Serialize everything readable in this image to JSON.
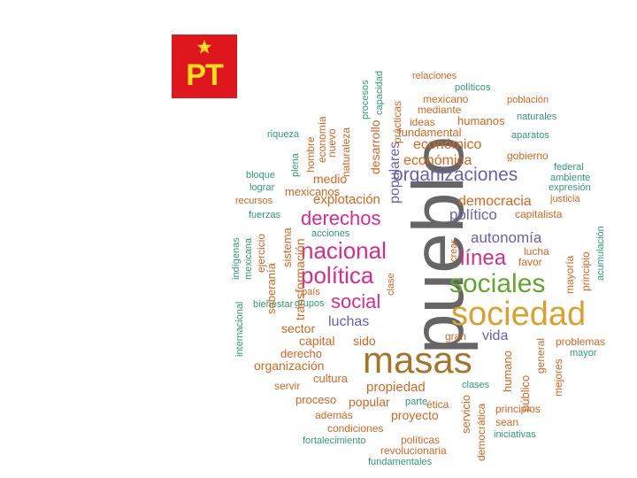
{
  "logo": {
    "text": "PT",
    "icon": "star-icon",
    "bg": "#e0161e",
    "fg": "#ffe01b"
  },
  "palette": {
    "green": "#2e9d78",
    "orange": "#d4661f",
    "purple": "#6b5fb0",
    "pink": "#d82c8a",
    "lime": "#62a62a",
    "gold": "#dca12c",
    "brown": "#a5762a",
    "gray": "#666666"
  },
  "words": [
    {
      "text": "pueblo",
      "color": "gray",
      "vertical": true
    },
    {
      "text": "masas",
      "color": "brown"
    },
    {
      "text": "sociedad",
      "color": "gold"
    },
    {
      "text": "sociales",
      "color": "lime"
    },
    {
      "text": "nacional",
      "color": "pink"
    },
    {
      "text": "política",
      "color": "pink"
    },
    {
      "text": "derechos",
      "color": "pink"
    },
    {
      "text": "social",
      "color": "pink"
    },
    {
      "text": "organizaciones",
      "color": "purple"
    },
    {
      "text": "línea",
      "color": "pink"
    },
    {
      "text": "autonomía",
      "color": "purple"
    },
    {
      "text": "político",
      "color": "purple"
    },
    {
      "text": "democracia",
      "color": "orange"
    },
    {
      "text": "luchas",
      "color": "purple"
    },
    {
      "text": "vida",
      "color": "purple"
    },
    {
      "text": "populares",
      "color": "purple",
      "vertical": true
    },
    {
      "text": "económico",
      "color": "orange"
    },
    {
      "text": "económica",
      "color": "orange"
    },
    {
      "text": "desarrollo",
      "color": "orange",
      "vertical": true
    },
    {
      "text": "explotación",
      "color": "orange"
    },
    {
      "text": "propiedad",
      "color": "orange"
    },
    {
      "text": "proyecto",
      "color": "orange"
    },
    {
      "text": "popular",
      "color": "orange"
    },
    {
      "text": "capital",
      "color": "orange"
    },
    {
      "text": "sido",
      "color": "orange"
    },
    {
      "text": "sector",
      "color": "orange"
    },
    {
      "text": "organización",
      "color": "orange"
    },
    {
      "text": "derecho",
      "color": "orange"
    },
    {
      "text": "cultura",
      "color": "orange"
    },
    {
      "text": "proceso",
      "color": "orange"
    },
    {
      "text": "servir",
      "color": "orange"
    },
    {
      "text": "medio",
      "color": "orange"
    },
    {
      "text": "mexicanos",
      "color": "orange"
    },
    {
      "text": "fundamental",
      "color": "orange"
    },
    {
      "text": "humanos",
      "color": "orange"
    },
    {
      "text": "ideas",
      "color": "orange"
    },
    {
      "text": "mediante",
      "color": "orange"
    },
    {
      "text": "mexicano",
      "color": "orange"
    },
    {
      "text": "relaciones",
      "color": "orange"
    },
    {
      "text": "políticos",
      "color": "green"
    },
    {
      "text": "población",
      "color": "orange"
    },
    {
      "text": "naturales",
      "color": "green"
    },
    {
      "text": "aparatos",
      "color": "green"
    },
    {
      "text": "gobierno",
      "color": "orange"
    },
    {
      "text": "federal",
      "color": "green"
    },
    {
      "text": "ambiente",
      "color": "green"
    },
    {
      "text": "expresión",
      "color": "green"
    },
    {
      "text": "justicia",
      "color": "orange"
    },
    {
      "text": "capitalista",
      "color": "orange"
    },
    {
      "text": "lucha",
      "color": "orange"
    },
    {
      "text": "favor",
      "color": "orange"
    },
    {
      "text": "gran",
      "color": "orange"
    },
    {
      "text": "problemas",
      "color": "orange"
    },
    {
      "text": "mayor",
      "color": "green"
    },
    {
      "text": "principios",
      "color": "orange"
    },
    {
      "text": "sean",
      "color": "orange"
    },
    {
      "text": "iniciativas",
      "color": "green"
    },
    {
      "text": "clases",
      "color": "green"
    },
    {
      "text": "parte",
      "color": "green"
    },
    {
      "text": "ética",
      "color": "orange"
    },
    {
      "text": "además",
      "color": "orange"
    },
    {
      "text": "condiciones",
      "color": "orange"
    },
    {
      "text": "políticas",
      "color": "orange"
    },
    {
      "text": "fortalecimiento",
      "color": "green"
    },
    {
      "text": "revolucionaria",
      "color": "orange"
    },
    {
      "text": "fundamentales",
      "color": "green"
    },
    {
      "text": "riqueza",
      "color": "green"
    },
    {
      "text": "bloque",
      "color": "green"
    },
    {
      "text": "lograr",
      "color": "green"
    },
    {
      "text": "recursos",
      "color": "orange"
    },
    {
      "text": "fuerzas",
      "color": "green"
    },
    {
      "text": "acciones",
      "color": "green"
    },
    {
      "text": "país",
      "color": "orange"
    },
    {
      "text": "grupos",
      "color": "green"
    },
    {
      "text": "bienestar",
      "color": "green"
    },
    {
      "text": "transformación",
      "color": "orange",
      "vertical": true
    },
    {
      "text": "sistema",
      "color": "orange",
      "vertical": true
    },
    {
      "text": "soberanía",
      "color": "orange",
      "vertical": true
    },
    {
      "text": "ejercicio",
      "color": "orange",
      "vertical": true
    },
    {
      "text": "mexicana",
      "color": "green",
      "vertical": true
    },
    {
      "text": "indígenas",
      "color": "green",
      "vertical": true
    },
    {
      "text": "internacional",
      "color": "green",
      "vertical": true
    },
    {
      "text": "plena",
      "color": "green",
      "vertical": true
    },
    {
      "text": "hombre",
      "color": "orange",
      "vertical": true
    },
    {
      "text": "economía",
      "color": "orange",
      "vertical": true
    },
    {
      "text": "nuevo",
      "color": "orange",
      "vertical": true
    },
    {
      "text": "naturaleza",
      "color": "orange",
      "vertical": true
    },
    {
      "text": "procesos",
      "color": "green",
      "vertical": true
    },
    {
      "text": "capacidad",
      "color": "green",
      "vertical": true
    },
    {
      "text": "prácticas",
      "color": "orange",
      "vertical": true
    },
    {
      "text": "crear",
      "color": "orange",
      "vertical": true
    },
    {
      "text": "clase",
      "color": "orange",
      "vertical": true
    },
    {
      "text": "humano",
      "color": "orange",
      "vertical": true
    },
    {
      "text": "servicio",
      "color": "orange",
      "vertical": true
    },
    {
      "text": "democrática",
      "color": "orange",
      "vertical": true
    },
    {
      "text": "público",
      "color": "orange",
      "vertical": true
    },
    {
      "text": "general",
      "color": "orange",
      "vertical": true
    },
    {
      "text": "mejores",
      "color": "orange",
      "vertical": true
    },
    {
      "text": "mayoría",
      "color": "orange",
      "vertical": true
    },
    {
      "text": "principio",
      "color": "orange",
      "vertical": true
    },
    {
      "text": "acumulación",
      "color": "green",
      "vertical": true
    }
  ]
}
